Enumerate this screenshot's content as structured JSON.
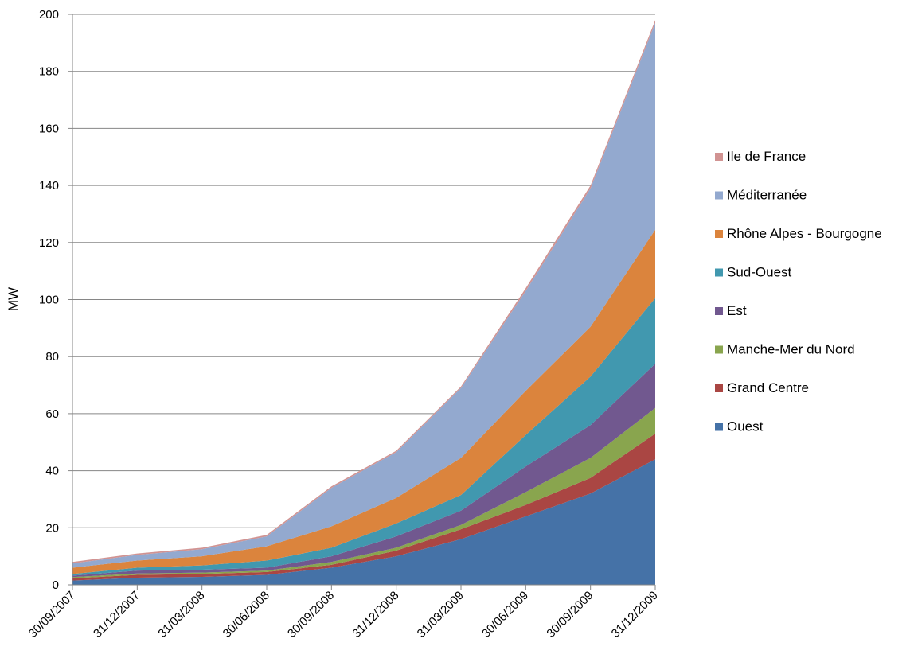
{
  "chart_data": {
    "type": "area",
    "stacked": true,
    "title": "",
    "xlabel": "",
    "ylabel": "MW",
    "ylim": [
      0,
      200
    ],
    "yticks": [
      0,
      20,
      40,
      60,
      80,
      100,
      120,
      140,
      160,
      180,
      200
    ],
    "grid": "horizontal",
    "legend_position": "right",
    "categories": [
      "30/09/2007",
      "31/12/2007",
      "31/03/2008",
      "30/06/2008",
      "30/09/2008",
      "31/12/2008",
      "31/03/2009",
      "30/06/2009",
      "30/09/2009",
      "31/12/2009"
    ],
    "series": [
      {
        "name": "Ouest",
        "color": "#4572a7",
        "values": [
          1.5,
          2.5,
          2.8,
          3.5,
          6,
          10,
          16,
          24,
          32,
          44
        ]
      },
      {
        "name": "Grand Centre",
        "color": "#aa4643",
        "values": [
          0.8,
          1,
          1,
          1,
          1,
          2,
          3.5,
          4,
          5.5,
          9
        ]
      },
      {
        "name": "Manche-Mer du Nord",
        "color": "#89a54e",
        "values": [
          0.4,
          0.5,
          0.5,
          0.5,
          1,
          1,
          1.5,
          4.5,
          7,
          9
        ]
      },
      {
        "name": "Est",
        "color": "#71588f",
        "values": [
          0.5,
          1,
          1,
          1,
          2,
          4,
          5,
          9,
          11.5,
          15.5
        ]
      },
      {
        "name": "Sud-Ouest",
        "color": "#4198af",
        "values": [
          0.6,
          1,
          1.5,
          2.5,
          3,
          4.5,
          5.5,
          11,
          17,
          23
        ]
      },
      {
        "name": "Rhône Alpes - Bourgogne",
        "color": "#db843d",
        "values": [
          2.2,
          2.5,
          3.2,
          5,
          7.5,
          9,
          13,
          15.5,
          17.5,
          24
        ]
      },
      {
        "name": "Méditerranée",
        "color": "#93a9cf",
        "values": [
          1.5,
          2,
          2.5,
          3.5,
          13.5,
          16,
          24.5,
          35,
          48.5,
          72.5
        ]
      },
      {
        "name": "Ile de France",
        "color": "#d19392",
        "values": [
          0.5,
          0.5,
          0.5,
          0.5,
          0.5,
          0.5,
          0.5,
          1,
          1,
          1
        ]
      }
    ]
  }
}
